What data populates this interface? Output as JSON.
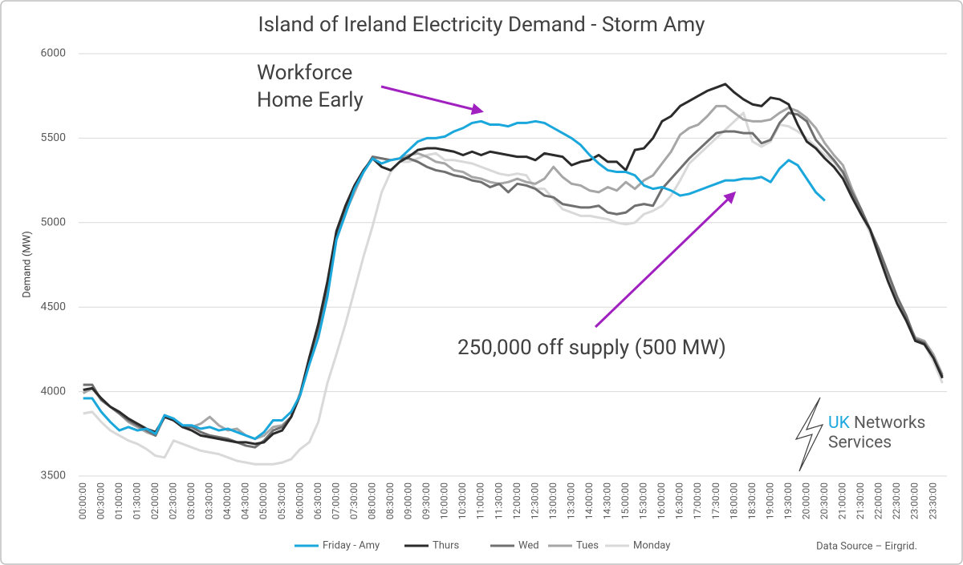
{
  "chart_data": {
    "type": "line",
    "title": "Island of Ireland Electricity Demand - Storm Amy",
    "y_label": "Demand (MW)",
    "ylim": [
      3500,
      6000
    ],
    "yticks": [
      3500,
      4000,
      4500,
      5000,
      5500,
      6000
    ],
    "grid": true,
    "legend": "bottom",
    "categories": [
      "00:00:00",
      null,
      "00:30:00",
      null,
      "01:00:00",
      null,
      "01:30:00",
      null,
      "02:00:00",
      null,
      "02:30:00",
      null,
      "03:00:00",
      null,
      "03:30:00",
      null,
      "04:00:00",
      null,
      "04:30:00",
      null,
      "05:00:00",
      null,
      "05:30:00",
      null,
      "06:00:00",
      null,
      "06:30:00",
      null,
      "07:00:00",
      null,
      "07:30:00",
      null,
      "08:00:00",
      null,
      "08:30:00",
      null,
      "09:00:00",
      null,
      "09:30:00",
      null,
      "10:00:00",
      null,
      "10:30:00",
      null,
      "11:00:00",
      null,
      "11:30:00",
      null,
      "12:00:00",
      null,
      "12:30:00",
      null,
      "13:00:00",
      null,
      "13:30:00",
      null,
      "14:00:00",
      null,
      "14:30:00",
      null,
      "15:00:00",
      null,
      "15:30:00",
      null,
      "16:00:00",
      null,
      "16:30:00",
      null,
      "17:00:00",
      null,
      "17:30:00",
      null,
      "18:00:00",
      null,
      "18:30:00",
      null,
      "19:00:00",
      null,
      "19:30:00",
      null,
      "20:00:00",
      null,
      "20:30:00",
      null,
      "21:00:00",
      null,
      "21:30:00",
      null,
      "22:00:00",
      null,
      "22:30:00",
      null,
      "23:00:00",
      null,
      "23:30:00",
      null
    ],
    "series": [
      {
        "name": "Friday - Amy",
        "color": "#1aa7dc",
        "values": [
          3960,
          3960,
          3880,
          3820,
          3770,
          3790,
          3770,
          3780,
          3750,
          3860,
          3840,
          3800,
          3800,
          3780,
          3790,
          3770,
          3780,
          3760,
          3740,
          3720,
          3760,
          3830,
          3830,
          3880,
          3980,
          4160,
          4320,
          4560,
          4900,
          5050,
          5200,
          5300,
          5380,
          5350,
          5370,
          5380,
          5430,
          5480,
          5500,
          5500,
          5510,
          5540,
          5560,
          5590,
          5600,
          5580,
          5580,
          5570,
          5590,
          5590,
          5600,
          5590,
          5560,
          5530,
          5500,
          5460,
          5400,
          5350,
          5310,
          5300,
          5300,
          5280,
          5220,
          5200,
          5210,
          5190,
          5160,
          5170,
          5190,
          5210,
          5230,
          5250,
          5250,
          5260,
          5260,
          5270,
          5240,
          5320,
          5370,
          5340,
          5260,
          5180,
          5130,
          null,
          null,
          null,
          null,
          null,
          null,
          null,
          null,
          null,
          null,
          null,
          null,
          null
        ]
      },
      {
        "name": "Thurs",
        "color": "#2b2b2b",
        "values": [
          4010,
          4020,
          3960,
          3910,
          3880,
          3840,
          3810,
          3780,
          3760,
          3850,
          3830,
          3790,
          3770,
          3740,
          3730,
          3720,
          3710,
          3700,
          3700,
          3690,
          3700,
          3750,
          3770,
          3850,
          3980,
          4200,
          4400,
          4650,
          4950,
          5100,
          5220,
          5310,
          5380,
          5330,
          5310,
          5360,
          5390,
          5430,
          5440,
          5440,
          5430,
          5420,
          5400,
          5420,
          5400,
          5420,
          5410,
          5400,
          5390,
          5390,
          5370,
          5410,
          5400,
          5390,
          5340,
          5360,
          5370,
          5400,
          5360,
          5360,
          5310,
          5430,
          5440,
          5500,
          5600,
          5630,
          5690,
          5720,
          5750,
          5780,
          5800,
          5820,
          5770,
          5730,
          5700,
          5690,
          5740,
          5730,
          5700,
          5580,
          5480,
          5440,
          5380,
          5330,
          5260,
          5150,
          5050,
          4960,
          4800,
          4650,
          4520,
          4420,
          4300,
          4280,
          4200,
          4080
        ]
      },
      {
        "name": "Wed",
        "color": "#707070",
        "values": [
          4040,
          4040,
          3950,
          3910,
          3870,
          3830,
          3800,
          3770,
          3740,
          3860,
          3830,
          3790,
          3790,
          3760,
          3740,
          3730,
          3720,
          3700,
          3680,
          3670,
          3710,
          3770,
          3790,
          3850,
          3990,
          4200,
          4380,
          4600,
          4920,
          5080,
          5200,
          5300,
          5390,
          5380,
          5370,
          5380,
          5380,
          5360,
          5330,
          5310,
          5300,
          5280,
          5270,
          5250,
          5240,
          5210,
          5230,
          5180,
          5230,
          5220,
          5200,
          5160,
          5150,
          5110,
          5100,
          5090,
          5090,
          5100,
          5060,
          5050,
          5060,
          5100,
          5110,
          5100,
          5200,
          5260,
          5320,
          5380,
          5430,
          5480,
          5530,
          5540,
          5540,
          5530,
          5530,
          5470,
          5490,
          5590,
          5650,
          5640,
          5600,
          5490,
          5430,
          5370,
          5300,
          5180,
          5080,
          4960,
          4840,
          4700,
          4560,
          4450,
          4310,
          4290,
          4200,
          4090
        ]
      },
      {
        "name": "Tues",
        "color": "#a6a6a6",
        "values": [
          3990,
          4020,
          3950,
          3910,
          3870,
          3820,
          3790,
          3760,
          3740,
          3850,
          3830,
          3790,
          3790,
          3810,
          3850,
          3800,
          3770,
          3780,
          3740,
          3720,
          3740,
          3790,
          3800,
          3850,
          3990,
          4180,
          4370,
          4600,
          4900,
          5060,
          5180,
          5300,
          5390,
          5380,
          5370,
          5380,
          5400,
          5410,
          5390,
          5360,
          5350,
          5310,
          5300,
          5270,
          5260,
          5240,
          5230,
          5240,
          5260,
          5240,
          5230,
          5260,
          5330,
          5270,
          5230,
          5220,
          5190,
          5180,
          5210,
          5190,
          5240,
          5200,
          5250,
          5280,
          5350,
          5420,
          5520,
          5560,
          5580,
          5630,
          5690,
          5690,
          5650,
          5610,
          5600,
          5600,
          5610,
          5650,
          5680,
          5660,
          5620,
          5560,
          5470,
          5400,
          5340,
          5200,
          5080,
          4960,
          4830,
          4690,
          4560,
          4430,
          4320,
          4300,
          4220,
          4100
        ]
      },
      {
        "name": "Monday",
        "color": "#d9d9d9",
        "values": [
          3870,
          3880,
          3820,
          3770,
          3740,
          3710,
          3690,
          3660,
          3620,
          3610,
          3710,
          3690,
          3670,
          3650,
          3640,
          3630,
          3610,
          3590,
          3580,
          3570,
          3570,
          3570,
          3580,
          3600,
          3660,
          3700,
          3820,
          4050,
          4220,
          4400,
          4600,
          4800,
          4980,
          5180,
          5300,
          5360,
          5360,
          5380,
          5400,
          5410,
          5370,
          5370,
          5360,
          5350,
          5330,
          5310,
          5290,
          5280,
          5290,
          5280,
          5200,
          5200,
          5140,
          5080,
          5060,
          5040,
          5040,
          5030,
          5020,
          5000,
          4990,
          5000,
          5050,
          5070,
          5100,
          5160,
          5250,
          5350,
          5400,
          5450,
          5500,
          5550,
          5600,
          5650,
          5480,
          5450,
          5480,
          5580,
          5570,
          5540,
          5500,
          5450,
          5400,
          5360,
          5290,
          5160,
          5050,
          4940,
          4800,
          4690,
          4550,
          4420,
          4300,
          4280,
          4180,
          4050
        ]
      }
    ],
    "annotations": [
      [
        "Workforce",
        "Home Early"
      ],
      [
        "250,000 off supply (500 MW)"
      ]
    ],
    "logo": [
      "UK",
      "Networks",
      "Services"
    ],
    "source": "Data Source – Eirgrid."
  }
}
